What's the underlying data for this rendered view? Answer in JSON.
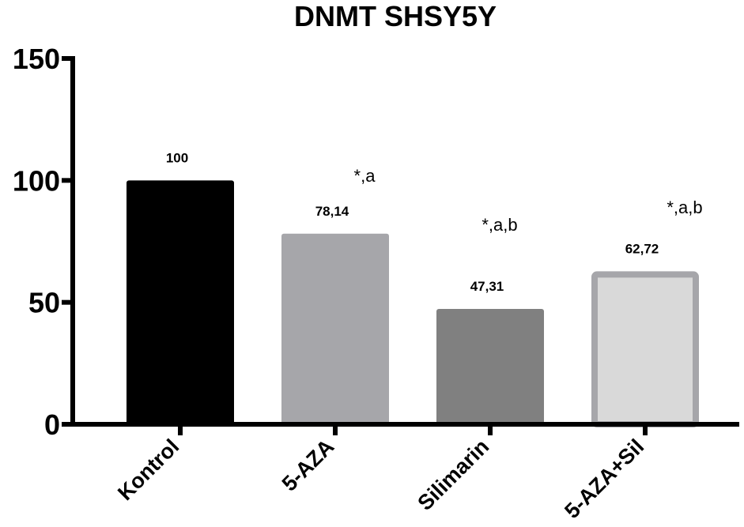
{
  "chart_data": {
    "type": "bar",
    "title": "DNMT SHSY5Y",
    "xlabel": "",
    "ylabel": "",
    "ylim": [
      0,
      150
    ],
    "yticks": [
      "0",
      "50",
      "100",
      "150"
    ],
    "categories": [
      "Kontrol",
      "5-AZA",
      "Silimarin",
      "5-AZA+Sil"
    ],
    "values": [
      100,
      78.14,
      47.31,
      62.72
    ],
    "value_labels": [
      "100",
      "78,14",
      "47,31",
      "62,72"
    ],
    "annotations": [
      "",
      "*,a",
      "*,a,b",
      "*,a,b"
    ],
    "colors": [
      "#000000",
      "#a6a6aa",
      "#808080",
      "#d9d9d9"
    ],
    "edge_colors": [
      "#000000",
      "#a6a6aa",
      "#808080",
      "#a6a6aa"
    ],
    "grid": false,
    "legend": "none"
  }
}
